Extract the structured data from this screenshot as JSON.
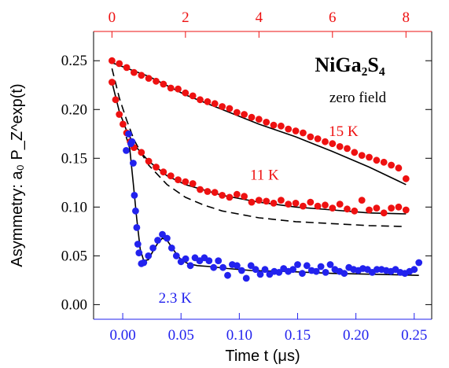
{
  "chart_data": {
    "type": "scatter",
    "title": "NiGa₂S₄",
    "subtitle": "zero field",
    "xlabel": "Time t (μs)",
    "ylabel": "Asymmetry: a₀ P_Z^exp(t)",
    "xlim": [
      -0.025,
      0.265
    ],
    "ylim": [
      -0.015,
      0.28
    ],
    "x_ticks": [
      "0.00",
      "0.05",
      "0.10",
      "0.15",
      "0.20",
      "0.25"
    ],
    "y_ticks": [
      "0.00",
      "0.05",
      "0.10",
      "0.15",
      "0.20",
      "0.25"
    ],
    "top_axis": {
      "lim": [
        -0.5,
        8.7
      ],
      "ticks": [
        "0",
        "2",
        "4",
        "6",
        "8"
      ],
      "color": "#ee1111"
    },
    "grid": false,
    "series": [
      {
        "name": "15 K",
        "axis": "top",
        "color": "#ee1111",
        "points": [
          [
            0.0,
            0.25
          ],
          [
            0.2,
            0.247
          ],
          [
            0.4,
            0.243
          ],
          [
            0.6,
            0.238
          ],
          [
            0.8,
            0.235
          ],
          [
            1.0,
            0.232
          ],
          [
            1.2,
            0.229
          ],
          [
            1.4,
            0.226
          ],
          [
            1.6,
            0.222
          ],
          [
            1.8,
            0.221
          ],
          [
            2.0,
            0.217
          ],
          [
            2.2,
            0.214
          ],
          [
            2.4,
            0.21
          ],
          [
            2.6,
            0.208
          ],
          [
            2.8,
            0.206
          ],
          [
            3.0,
            0.203
          ],
          [
            3.2,
            0.201
          ],
          [
            3.4,
            0.197
          ],
          [
            3.6,
            0.195
          ],
          [
            3.8,
            0.192
          ],
          [
            4.0,
            0.19
          ],
          [
            4.2,
            0.187
          ],
          [
            4.4,
            0.184
          ],
          [
            4.6,
            0.183
          ],
          [
            4.8,
            0.18
          ],
          [
            5.0,
            0.178
          ],
          [
            5.2,
            0.176
          ],
          [
            5.4,
            0.172
          ],
          [
            5.6,
            0.17
          ],
          [
            5.8,
            0.167
          ],
          [
            6.0,
            0.165
          ],
          [
            6.2,
            0.162
          ],
          [
            6.4,
            0.16
          ],
          [
            6.6,
            0.156
          ],
          [
            6.8,
            0.153
          ],
          [
            7.0,
            0.151
          ],
          [
            7.2,
            0.148
          ],
          [
            7.4,
            0.146
          ],
          [
            7.6,
            0.143
          ],
          [
            7.8,
            0.14
          ],
          [
            8.0,
            0.129
          ]
        ],
        "fit": [
          [
            0.0,
            0.248
          ],
          [
            1.0,
            0.234
          ],
          [
            2.0,
            0.215
          ],
          [
            3.0,
            0.2
          ],
          [
            4.0,
            0.185
          ],
          [
            5.0,
            0.172
          ],
          [
            6.0,
            0.157
          ],
          [
            7.0,
            0.141
          ],
          [
            8.0,
            0.123
          ]
        ],
        "fit_style": "solid"
      },
      {
        "name": "11 K",
        "axis": "top",
        "color": "#ee1111",
        "points": [
          [
            0.0,
            0.228
          ],
          [
            0.1,
            0.21
          ],
          [
            0.2,
            0.195
          ],
          [
            0.3,
            0.185
          ],
          [
            0.4,
            0.176
          ],
          [
            0.5,
            0.167
          ],
          [
            0.6,
            0.161
          ],
          [
            0.8,
            0.156
          ],
          [
            1.0,
            0.147
          ],
          [
            1.2,
            0.141
          ],
          [
            1.4,
            0.136
          ],
          [
            1.6,
            0.132
          ],
          [
            1.8,
            0.128
          ],
          [
            2.0,
            0.126
          ],
          [
            2.2,
            0.124
          ],
          [
            2.4,
            0.118
          ],
          [
            2.6,
            0.116
          ],
          [
            2.8,
            0.115
          ],
          [
            3.0,
            0.112
          ],
          [
            3.2,
            0.11
          ],
          [
            3.4,
            0.113
          ],
          [
            3.6,
            0.111
          ],
          [
            3.8,
            0.105
          ],
          [
            4.0,
            0.107
          ],
          [
            4.2,
            0.106
          ],
          [
            4.4,
            0.104
          ],
          [
            4.6,
            0.107
          ],
          [
            4.8,
            0.103
          ],
          [
            5.0,
            0.104
          ],
          [
            5.2,
            0.101
          ],
          [
            5.4,
            0.105
          ],
          [
            5.6,
            0.101
          ],
          [
            5.8,
            0.102
          ],
          [
            6.0,
            0.099
          ],
          [
            6.2,
            0.103
          ],
          [
            6.4,
            0.098
          ],
          [
            6.6,
            0.096
          ],
          [
            6.8,
            0.107
          ],
          [
            7.0,
            0.097
          ],
          [
            7.2,
            0.099
          ],
          [
            7.4,
            0.094
          ],
          [
            7.6,
            0.099
          ],
          [
            7.8,
            0.1
          ],
          [
            8.0,
            0.097
          ]
        ],
        "fit": [
          [
            0.0,
            0.228
          ],
          [
            0.2,
            0.198
          ],
          [
            0.4,
            0.178
          ],
          [
            0.6,
            0.164
          ],
          [
            1.0,
            0.147
          ],
          [
            1.5,
            0.132
          ],
          [
            2.0,
            0.123
          ],
          [
            3.0,
            0.112
          ],
          [
            4.0,
            0.105
          ],
          [
            5.0,
            0.1
          ],
          [
            6.0,
            0.097
          ],
          [
            7.0,
            0.094
          ],
          [
            8.0,
            0.093
          ]
        ],
        "fit_style": "solid"
      },
      {
        "name": "dashed",
        "axis": "top",
        "color": "#111111",
        "points": [],
        "fit": [
          [
            0.0,
            0.242
          ],
          [
            0.2,
            0.212
          ],
          [
            0.4,
            0.189
          ],
          [
            0.6,
            0.169
          ],
          [
            0.8,
            0.155
          ],
          [
            1.0,
            0.143
          ],
          [
            1.5,
            0.123
          ],
          [
            2.0,
            0.11
          ],
          [
            2.5,
            0.102
          ],
          [
            3.0,
            0.096
          ],
          [
            4.0,
            0.089
          ],
          [
            5.0,
            0.085
          ],
          [
            6.0,
            0.083
          ],
          [
            7.0,
            0.081
          ],
          [
            8.0,
            0.08
          ]
        ],
        "fit_style": "dashed"
      },
      {
        "name": "2.3 K",
        "axis": "bottom",
        "color": "#2222ee",
        "points": [
          [
            0.003,
            0.158
          ],
          [
            0.005,
            0.175
          ],
          [
            0.007,
            0.165
          ],
          [
            0.008,
            0.167
          ],
          [
            0.009,
            0.145
          ],
          [
            0.01,
            0.112
          ],
          [
            0.011,
            0.096
          ],
          [
            0.012,
            0.079
          ],
          [
            0.013,
            0.062
          ],
          [
            0.014,
            0.053
          ],
          [
            0.016,
            0.042
          ],
          [
            0.018,
            0.043
          ],
          [
            0.022,
            0.05
          ],
          [
            0.026,
            0.058
          ],
          [
            0.03,
            0.066
          ],
          [
            0.034,
            0.072
          ],
          [
            0.038,
            0.068
          ],
          [
            0.042,
            0.058
          ],
          [
            0.046,
            0.05
          ],
          [
            0.05,
            0.044
          ],
          [
            0.054,
            0.047
          ],
          [
            0.058,
            0.04
          ],
          [
            0.062,
            0.048
          ],
          [
            0.066,
            0.045
          ],
          [
            0.07,
            0.048
          ],
          [
            0.074,
            0.045
          ],
          [
            0.078,
            0.038
          ],
          [
            0.082,
            0.045
          ],
          [
            0.086,
            0.038
          ],
          [
            0.09,
            0.03
          ],
          [
            0.094,
            0.041
          ],
          [
            0.098,
            0.04
          ],
          [
            0.102,
            0.035
          ],
          [
            0.106,
            0.027
          ],
          [
            0.11,
            0.04
          ],
          [
            0.114,
            0.036
          ],
          [
            0.118,
            0.031
          ],
          [
            0.122,
            0.036
          ],
          [
            0.126,
            0.031
          ],
          [
            0.13,
            0.034
          ],
          [
            0.134,
            0.033
          ],
          [
            0.138,
            0.037
          ],
          [
            0.142,
            0.034
          ],
          [
            0.146,
            0.036
          ],
          [
            0.15,
            0.041
          ],
          [
            0.154,
            0.032
          ],
          [
            0.158,
            0.04
          ],
          [
            0.162,
            0.035
          ],
          [
            0.166,
            0.034
          ],
          [
            0.17,
            0.039
          ],
          [
            0.174,
            0.033
          ],
          [
            0.178,
            0.041
          ],
          [
            0.182,
            0.036
          ],
          [
            0.186,
            0.034
          ],
          [
            0.19,
            0.032
          ],
          [
            0.194,
            0.038
          ],
          [
            0.198,
            0.036
          ],
          [
            0.202,
            0.035
          ],
          [
            0.206,
            0.037
          ],
          [
            0.21,
            0.036
          ],
          [
            0.214,
            0.033
          ],
          [
            0.218,
            0.036
          ],
          [
            0.222,
            0.036
          ],
          [
            0.226,
            0.035
          ],
          [
            0.23,
            0.034
          ],
          [
            0.234,
            0.036
          ],
          [
            0.238,
            0.033
          ],
          [
            0.242,
            0.032
          ],
          [
            0.246,
            0.034
          ],
          [
            0.25,
            0.036
          ],
          [
            0.254,
            0.043
          ]
        ],
        "fit": [
          [
            0.003,
            0.172
          ],
          [
            0.006,
            0.16
          ],
          [
            0.009,
            0.125
          ],
          [
            0.012,
            0.088
          ],
          [
            0.015,
            0.057
          ],
          [
            0.018,
            0.045
          ],
          [
            0.022,
            0.046
          ],
          [
            0.026,
            0.055
          ],
          [
            0.03,
            0.063
          ],
          [
            0.034,
            0.068
          ],
          [
            0.038,
            0.066
          ],
          [
            0.042,
            0.059
          ],
          [
            0.046,
            0.052
          ],
          [
            0.05,
            0.046
          ],
          [
            0.056,
            0.042
          ],
          [
            0.064,
            0.04
          ],
          [
            0.075,
            0.039
          ],
          [
            0.09,
            0.037
          ],
          [
            0.11,
            0.035
          ],
          [
            0.14,
            0.034
          ],
          [
            0.18,
            0.032
          ],
          [
            0.22,
            0.031
          ],
          [
            0.254,
            0.03
          ]
        ],
        "fit_style": "solid"
      }
    ],
    "annotations": [
      {
        "text": "15 K",
        "color": "#ee1111",
        "axis": "top",
        "x": 6.3,
        "y": 0.173
      },
      {
        "text": "11 K",
        "color": "#ee1111",
        "axis": "top",
        "x": 4.15,
        "y": 0.128
      },
      {
        "text": "2.3 K",
        "color": "#2222ee",
        "axis": "bottom",
        "x": 0.045,
        "y": 0.002
      }
    ]
  }
}
